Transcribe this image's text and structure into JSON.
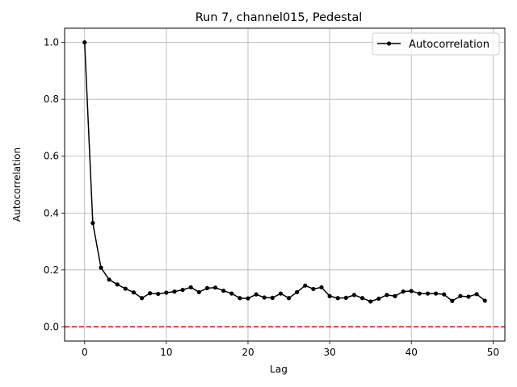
{
  "chart_data": {
    "type": "line",
    "title": "Run 7, channel015, Pedestal",
    "xlabel": "Lag",
    "ylabel": "Autocorrelation",
    "xlim": [
      -2.45,
      51.45
    ],
    "ylim": [
      -0.05,
      1.05
    ],
    "x_ticks": [
      0,
      10,
      20,
      30,
      40,
      50
    ],
    "y_ticks": [
      0.0,
      0.2,
      0.4,
      0.6,
      0.8,
      1.0
    ],
    "grid": true,
    "legend": {
      "placement": "top-right",
      "entries": [
        "Autocorrelation"
      ]
    },
    "series": [
      {
        "name": "Autocorrelation",
        "color": "#000000",
        "marker": "circle",
        "x": [
          0,
          1,
          2,
          3,
          4,
          5,
          6,
          7,
          8,
          9,
          10,
          11,
          12,
          13,
          14,
          15,
          16,
          17,
          18,
          19,
          20,
          21,
          22,
          23,
          24,
          25,
          26,
          27,
          28,
          29,
          30,
          31,
          32,
          33,
          34,
          35,
          36,
          37,
          38,
          39,
          40,
          41,
          42,
          43,
          44,
          45,
          46,
          47,
          48,
          49
        ],
        "y": [
          1.0,
          0.365,
          0.208,
          0.166,
          0.149,
          0.134,
          0.121,
          0.101,
          0.118,
          0.116,
          0.12,
          0.124,
          0.13,
          0.139,
          0.122,
          0.136,
          0.138,
          0.127,
          0.117,
          0.101,
          0.1,
          0.114,
          0.103,
          0.102,
          0.117,
          0.101,
          0.122,
          0.145,
          0.133,
          0.139,
          0.108,
          0.101,
          0.102,
          0.112,
          0.101,
          0.089,
          0.099,
          0.112,
          0.108,
          0.124,
          0.126,
          0.117,
          0.117,
          0.117,
          0.114,
          0.091,
          0.108,
          0.106,
          0.115,
          0.092
        ]
      }
    ],
    "reference_line": {
      "y": 0.0,
      "color": "#dd0000",
      "style": "dashed"
    }
  }
}
